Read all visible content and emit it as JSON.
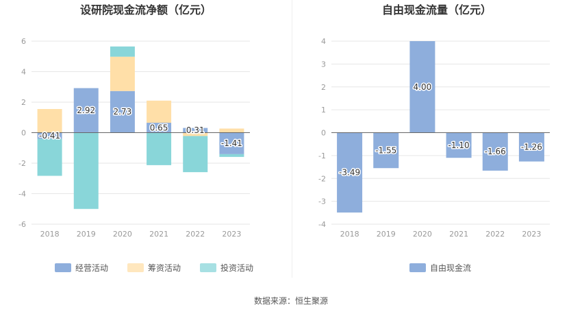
{
  "source_label": "数据来源：恒生聚源",
  "chart_data": [
    {
      "type": "bar",
      "stacked": true,
      "title": "设研院现金流净额（亿元）",
      "categories": [
        "2018",
        "2019",
        "2020",
        "2021",
        "2022",
        "2023"
      ],
      "ylim": [
        -6,
        6
      ],
      "yticks": [
        -6,
        -4,
        -2,
        0,
        2,
        4,
        6
      ],
      "grid": true,
      "legend_position": "bottom",
      "series": [
        {
          "name": "经营活动",
          "color": "#8eaedc",
          "values": [
            -0.41,
            2.92,
            2.73,
            0.65,
            0.31,
            -1.41
          ],
          "labels": [
            "-0.41",
            "2.92",
            "2.73",
            "0.65",
            "0.31",
            "-1.41"
          ]
        },
        {
          "name": "筹资活动",
          "color": "#ffdfa8",
          "values": [
            1.55,
            0,
            2.25,
            1.45,
            -0.22,
            0.27
          ]
        },
        {
          "name": "投资活动",
          "color": "#89d6d9",
          "values": [
            -2.42,
            -5.0,
            0.67,
            -2.13,
            -2.37,
            -0.18
          ]
        }
      ]
    },
    {
      "type": "bar",
      "title": "自由现金流量（亿元）",
      "categories": [
        "2018",
        "2019",
        "2020",
        "2021",
        "2022",
        "2023"
      ],
      "ylim": [
        -4,
        4
      ],
      "yticks": [
        -4,
        -3,
        -2,
        -1,
        0,
        1,
        2,
        3,
        4
      ],
      "grid": true,
      "legend_position": "bottom",
      "series": [
        {
          "name": "自由现金流",
          "color": "#8eaedc",
          "values": [
            -3.49,
            -1.55,
            4.0,
            -1.1,
            -1.66,
            -1.26
          ],
          "labels": [
            "-3.49",
            "-1.55",
            "4.00",
            "-1.10",
            "-1.66",
            "-1.26"
          ]
        }
      ]
    }
  ]
}
